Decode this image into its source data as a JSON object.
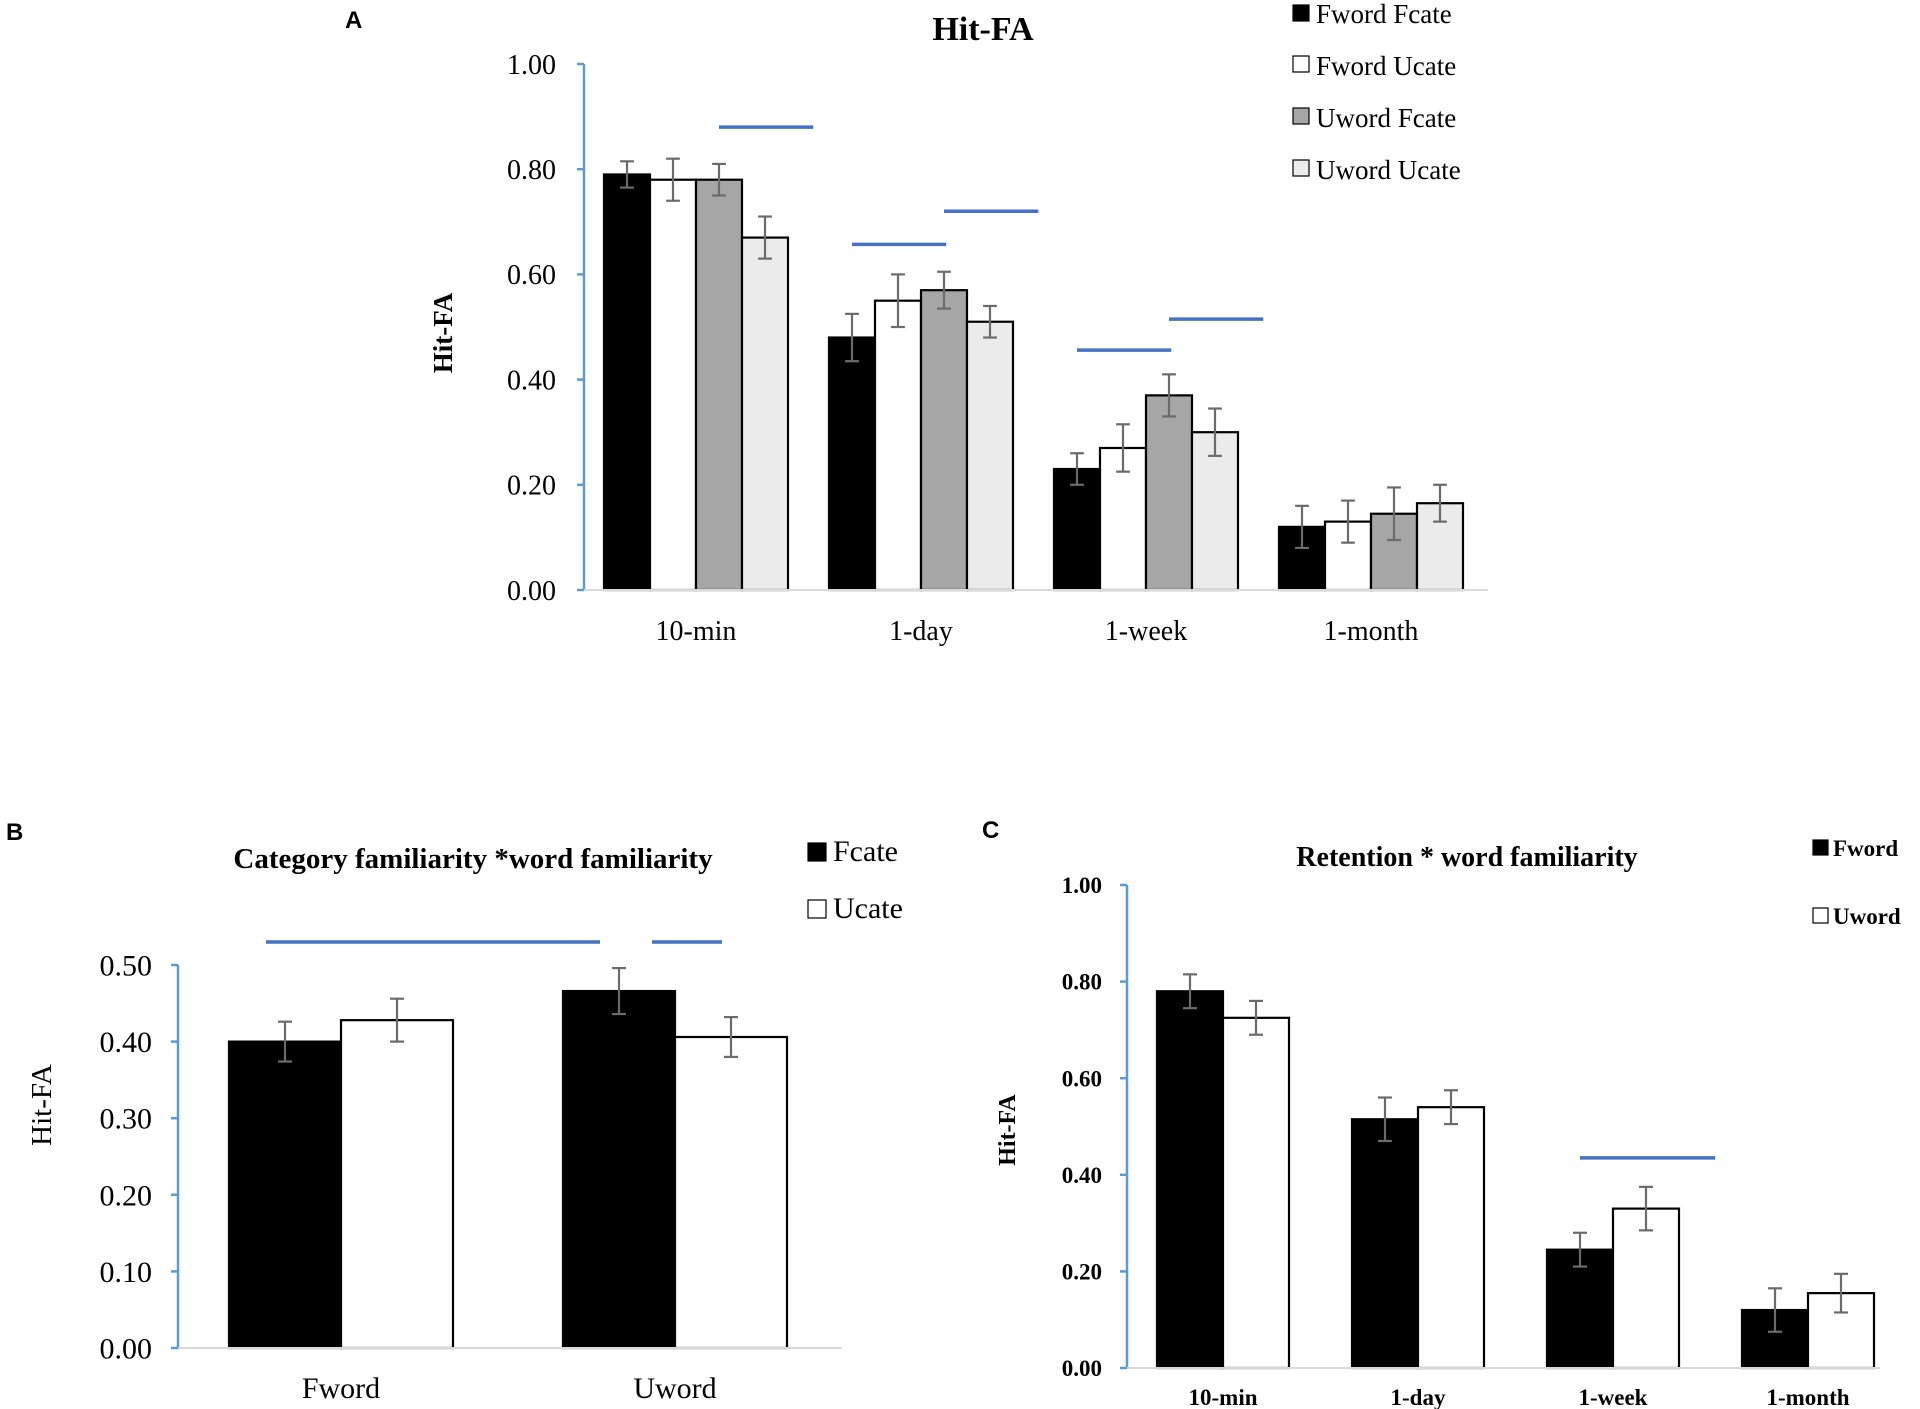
{
  "colors": {
    "axis": "#5b9bd5",
    "sig_line": "#4472c4",
    "error_bar": "#6b6b6b",
    "bar_outline": "#000000"
  },
  "chart_data": [
    {
      "panel_label": "A",
      "type": "bar",
      "title": "Hit-FA",
      "xlabel": "",
      "ylabel": "Hit-FA",
      "ylim": [
        0,
        1
      ],
      "y_ticks": [
        "0.00",
        "0.20",
        "0.40",
        "0.60",
        "0.80",
        "1.00"
      ],
      "categories": [
        "10-min",
        "1-day",
        "1-week",
        "1-month"
      ],
      "legend_position": "top-right",
      "series": [
        {
          "name": "Fword Fcate",
          "fill": "#000000",
          "values": [
            0.79,
            0.48,
            0.23,
            0.12
          ],
          "errors": [
            0.025,
            0.045,
            0.03,
            0.04
          ]
        },
        {
          "name": "Fword Ucate",
          "fill": "#ffffff",
          "values": [
            0.78,
            0.55,
            0.27,
            0.13
          ],
          "errors": [
            0.04,
            0.05,
            0.045,
            0.04
          ]
        },
        {
          "name": "Uword Fcate",
          "fill": "#a6a6a6",
          "values": [
            0.78,
            0.57,
            0.37,
            0.145
          ],
          "errors": [
            0.03,
            0.035,
            0.04,
            0.05
          ]
        },
        {
          "name": "Uword Ucate",
          "fill": "#ebebeb",
          "values": [
            0.67,
            0.51,
            0.3,
            0.165
          ],
          "errors": [
            0.04,
            0.03,
            0.045,
            0.035
          ]
        }
      ],
      "significance": [
        {
          "group": 0,
          "from_series": 2,
          "to_series": 3,
          "y": 0.88
        },
        {
          "group": 1,
          "from_series": 0,
          "to_series": 1,
          "y": 0.657
        },
        {
          "group": 1,
          "from_series": 2,
          "to_series": 3,
          "y": 0.72
        },
        {
          "group": 2,
          "from_series": 0,
          "to_series": 1,
          "y": 0.456
        },
        {
          "group": 2,
          "from_series": 2,
          "to_series": 3,
          "y": 0.515
        }
      ]
    },
    {
      "panel_label": "B",
      "type": "bar",
      "title": "Category familiarity *word familiarity",
      "xlabel": "",
      "ylabel": "Hit-FA",
      "ylim": [
        0,
        0.5
      ],
      "y_ticks": [
        "0.00",
        "0.10",
        "0.20",
        "0.30",
        "0.40",
        "0.50"
      ],
      "categories": [
        "Fword",
        "Uword"
      ],
      "legend_position": "top-right",
      "series": [
        {
          "name": "Fcate",
          "fill": "#000000",
          "values": [
            0.4,
            0.466
          ],
          "errors": [
            0.026,
            0.03
          ]
        },
        {
          "name": "Ucate",
          "fill": "#ffffff",
          "values": [
            0.428,
            0.406
          ],
          "errors": [
            0.028,
            0.026
          ]
        }
      ],
      "significance": [
        {
          "from": [
            0,
            0
          ],
          "to": [
            1,
            0
          ],
          "y": 0.53
        },
        {
          "from": [
            1,
            1
          ],
          "to": [
            1,
            1
          ],
          "y": 0.53
        }
      ]
    },
    {
      "panel_label": "C",
      "type": "bar",
      "title": "Retention * word familiarity",
      "xlabel": "",
      "ylabel": "Hit-FA",
      "ylim": [
        0,
        1
      ],
      "y_ticks": [
        "0.00",
        "0.20",
        "0.40",
        "0.60",
        "0.80",
        "1.00"
      ],
      "categories": [
        "10-min",
        "1-day",
        "1-week",
        "1-month"
      ],
      "legend_position": "top-right",
      "series": [
        {
          "name": "Fword",
          "fill": "#000000",
          "values": [
            0.78,
            0.515,
            0.245,
            0.12
          ],
          "errors": [
            0.035,
            0.045,
            0.035,
            0.045
          ]
        },
        {
          "name": "Uword",
          "fill": "#ffffff",
          "values": [
            0.725,
            0.54,
            0.33,
            0.155
          ],
          "errors": [
            0.035,
            0.035,
            0.045,
            0.04
          ]
        }
      ],
      "significance": [
        {
          "group": 2,
          "from_series": 0,
          "to_series": 1,
          "y": 0.435
        }
      ]
    }
  ]
}
